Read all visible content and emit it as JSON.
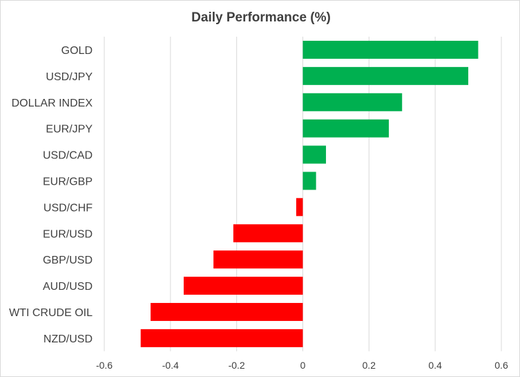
{
  "chart_data": {
    "type": "bar",
    "orientation": "horizontal",
    "title": "Daily Performance (%)",
    "xlabel": "",
    "ylabel": "",
    "categories": [
      "GOLD",
      "USD/JPY",
      "DOLLAR INDEX",
      "EUR/JPY",
      "USD/CAD",
      "EUR/GBP",
      "USD/CHF",
      "EUR/USD",
      "GBP/USD",
      "AUD/USD",
      "WTI CRUDE OIL",
      "NZD/USD"
    ],
    "values": [
      0.53,
      0.5,
      0.3,
      0.26,
      0.07,
      0.04,
      -0.02,
      -0.21,
      -0.27,
      -0.36,
      -0.46,
      -0.49
    ],
    "xlim": [
      -0.6,
      0.6
    ],
    "xticks": [
      "-0.6",
      "-0.4",
      "-0.2",
      "0",
      "0.2",
      "0.4",
      "0.6"
    ],
    "xtick_values": [
      -0.6,
      -0.4,
      -0.2,
      0,
      0.2,
      0.4,
      0.6
    ],
    "grid": true,
    "legend": "none",
    "colors": {
      "positive": "#00b050",
      "negative": "#ff0000",
      "grid": "#d9d9d9",
      "text": "#404040"
    }
  }
}
